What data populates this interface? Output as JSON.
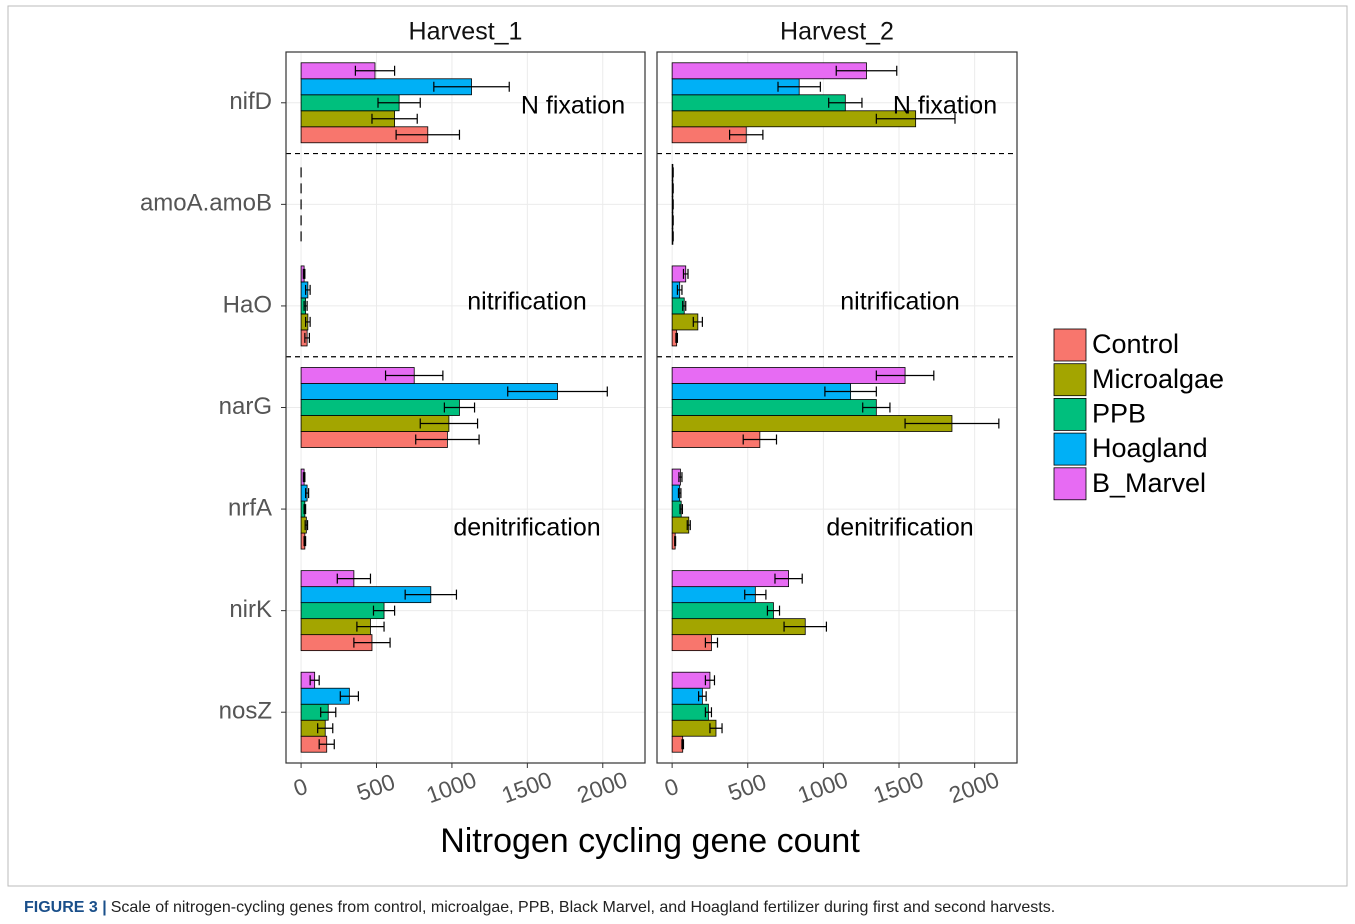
{
  "chart_data": [
    {
      "type": "bar",
      "orientation": "horizontal",
      "title": "Harvest_1",
      "categories": [
        "nifD",
        "amoA.amoB",
        "HaO",
        "narG",
        "nrfA",
        "nirK",
        "nosZ"
      ],
      "annotations": [
        "N fixation",
        "nitrification",
        "denitrification"
      ],
      "xlim": [
        -100,
        2280
      ],
      "xticks": [
        0,
        500,
        1000,
        1500,
        2000
      ],
      "grid": true,
      "series": [
        {
          "name": "Control",
          "color": "#F8766D",
          "values": [
            840,
            0,
            40,
            970,
            25,
            470,
            170
          ],
          "errors": [
            210,
            0,
            15,
            210,
            5,
            120,
            50
          ]
        },
        {
          "name": "Microalgae",
          "color": "#A3A500",
          "values": [
            620,
            0,
            45,
            980,
            35,
            460,
            160
          ],
          "errors": [
            150,
            0,
            15,
            190,
            8,
            90,
            50
          ]
        },
        {
          "name": "PPB",
          "color": "#00BF7D",
          "values": [
            650,
            0,
            30,
            1050,
            25,
            550,
            180
          ],
          "errors": [
            140,
            0,
            10,
            100,
            5,
            70,
            50
          ]
        },
        {
          "name": "Hoagland",
          "color": "#00B0F6",
          "values": [
            1130,
            0,
            45,
            1700,
            40,
            860,
            320
          ],
          "errors": [
            250,
            0,
            15,
            330,
            10,
            170,
            60
          ]
        },
        {
          "name": "B_Marvel",
          "color": "#E76BF3",
          "values": [
            490,
            0,
            20,
            750,
            20,
            350,
            90
          ],
          "errors": [
            130,
            0,
            5,
            190,
            5,
            110,
            30
          ]
        }
      ]
    },
    {
      "type": "bar",
      "orientation": "horizontal",
      "title": "Harvest_2",
      "categories": [
        "nifD",
        "amoA.amoB",
        "HaO",
        "narG",
        "nrfA",
        "nirK",
        "nosZ"
      ],
      "annotations": [
        "N fixation",
        "nitrification",
        "denitrification"
      ],
      "xlim": [
        -100,
        2280
      ],
      "xticks": [
        0,
        500,
        1000,
        1500,
        2000
      ],
      "grid": true,
      "series": [
        {
          "name": "Control",
          "color": "#F8766D",
          "values": [
            490,
            5,
            30,
            580,
            20,
            260,
            70
          ],
          "errors": [
            110,
            2,
            5,
            110,
            3,
            40,
            5
          ]
        },
        {
          "name": "Microalgae",
          "color": "#A3A500",
          "values": [
            1610,
            5,
            170,
            1850,
            110,
            880,
            290
          ],
          "errors": [
            260,
            2,
            30,
            310,
            10,
            140,
            40
          ]
        },
        {
          "name": "PPB",
          "color": "#00BF7D",
          "values": [
            1145,
            5,
            80,
            1350,
            60,
            670,
            240
          ],
          "errors": [
            110,
            2,
            10,
            90,
            8,
            40,
            20
          ]
        },
        {
          "name": "Hoagland",
          "color": "#00B0F6",
          "values": [
            840,
            5,
            50,
            1180,
            50,
            550,
            200
          ],
          "errors": [
            140,
            2,
            15,
            170,
            8,
            70,
            25
          ]
        },
        {
          "name": "B_Marvel",
          "color": "#E76BF3",
          "values": [
            1285,
            5,
            90,
            1540,
            55,
            770,
            250
          ],
          "errors": [
            200,
            2,
            15,
            190,
            10,
            90,
            30
          ]
        }
      ]
    }
  ],
  "x_label": "Nitrogen cycling gene count",
  "caption_label": "FIGURE 3 |",
  "caption": "Scale of nitrogen-cycling genes from control, microalgae, PPB, Black Marvel, and Hoagland fertilizer during first and second harvests."
}
